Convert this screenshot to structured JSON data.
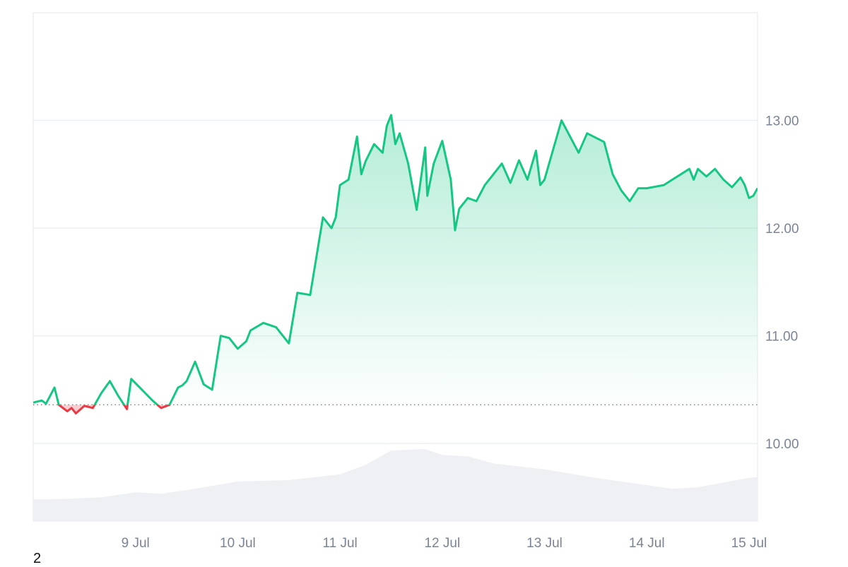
{
  "colors": {
    "up_line": "#16c784",
    "down_line": "#ea3943",
    "up_fill_top": "#16c784",
    "volume": "#eef0f3",
    "grid": "#eceff3",
    "tick_text": "#7b8494",
    "baseline": "#888888"
  },
  "footer_note": "2",
  "chart_data": {
    "type": "area",
    "title": "",
    "xlabel": "",
    "ylabel": "",
    "x_tick_labels": [
      "9 Jul",
      "10 Jul",
      "11 Jul",
      "12 Jul",
      "13 Jul",
      "14 Jul",
      "15 Jul"
    ],
    "y_tick_labels": [
      "13.00",
      "12.00",
      "11.00",
      "10.00"
    ],
    "y_ticks": [
      13.0,
      12.0,
      11.0,
      10.0
    ],
    "ylim": [
      9.28,
      14.0
    ],
    "xlim": [
      "2024-07-08T00:00",
      "2024-07-15T02:00"
    ],
    "baseline": 10.36,
    "grid": true,
    "y_axis_position": "right",
    "price_series": {
      "name": "",
      "x": [
        "2024-07-08T00:00",
        "2024-07-08T02:00",
        "2024-07-08T03:00",
        "2024-07-08T05:00",
        "2024-07-08T06:00",
        "2024-07-08T08:00",
        "2024-07-08T09:00",
        "2024-07-08T10:00",
        "2024-07-08T12:00",
        "2024-07-08T14:00",
        "2024-07-08T16:00",
        "2024-07-08T18:00",
        "2024-07-08T20:00",
        "2024-07-08T22:00",
        "2024-07-08T23:00",
        "2024-07-09T02:00",
        "2024-07-09T04:00",
        "2024-07-09T06:00",
        "2024-07-09T08:00",
        "2024-07-09T10:00",
        "2024-07-09T11:00",
        "2024-07-09T12:00",
        "2024-07-09T14:00",
        "2024-07-09T16:00",
        "2024-07-09T18:00",
        "2024-07-09T20:00",
        "2024-07-09T22:00",
        "2024-07-10T00:00",
        "2024-07-10T02:00",
        "2024-07-10T03:00",
        "2024-07-10T06:00",
        "2024-07-10T09:00",
        "2024-07-10T12:00",
        "2024-07-10T14:00",
        "2024-07-10T17:00",
        "2024-07-10T20:00",
        "2024-07-10T22:00",
        "2024-07-10T23:00",
        "2024-07-11T00:00",
        "2024-07-11T02:00",
        "2024-07-11T04:00",
        "2024-07-11T05:00",
        "2024-07-11T06:00",
        "2024-07-11T08:00",
        "2024-07-11T10:00",
        "2024-07-11T11:00",
        "2024-07-11T12:00",
        "2024-07-11T13:00",
        "2024-07-11T14:00",
        "2024-07-11T16:00",
        "2024-07-11T18:00",
        "2024-07-11T20:00",
        "2024-07-11T20:30",
        "2024-07-11T22:00",
        "2024-07-12T00:00",
        "2024-07-12T02:00",
        "2024-07-12T03:00",
        "2024-07-12T04:00",
        "2024-07-12T06:00",
        "2024-07-12T08:00",
        "2024-07-12T10:00",
        "2024-07-12T12:00",
        "2024-07-12T14:00",
        "2024-07-12T16:00",
        "2024-07-12T18:00",
        "2024-07-12T20:00",
        "2024-07-12T22:00",
        "2024-07-12T23:00",
        "2024-07-13T00:00",
        "2024-07-13T04:00",
        "2024-07-13T08:00",
        "2024-07-13T10:00",
        "2024-07-13T14:00",
        "2024-07-13T16:00",
        "2024-07-13T18:00",
        "2024-07-13T20:00",
        "2024-07-13T22:00",
        "2024-07-14T00:00",
        "2024-07-14T04:00",
        "2024-07-14T06:00",
        "2024-07-14T08:00",
        "2024-07-14T10:00",
        "2024-07-14T11:00",
        "2024-07-14T12:00",
        "2024-07-14T14:00",
        "2024-07-14T16:00",
        "2024-07-14T18:00",
        "2024-07-14T20:00",
        "2024-07-14T22:00",
        "2024-07-14T23:00",
        "2024-07-15T00:00",
        "2024-07-15T01:00",
        "2024-07-15T02:00"
      ],
      "y": [
        10.38,
        10.4,
        10.37,
        10.52,
        10.36,
        10.3,
        10.33,
        10.28,
        10.35,
        10.33,
        10.47,
        10.58,
        10.44,
        10.32,
        10.6,
        10.48,
        10.4,
        10.33,
        10.36,
        10.52,
        10.54,
        10.58,
        10.76,
        10.55,
        10.5,
        11.0,
        10.98,
        10.88,
        10.95,
        11.05,
        11.12,
        11.08,
        10.93,
        11.4,
        11.38,
        12.1,
        12.0,
        12.1,
        12.4,
        12.45,
        12.85,
        12.5,
        12.62,
        12.78,
        12.7,
        12.95,
        13.05,
        12.78,
        12.88,
        12.6,
        12.17,
        12.75,
        12.3,
        12.6,
        12.81,
        12.45,
        11.98,
        12.18,
        12.28,
        12.25,
        12.4,
        12.5,
        12.6,
        12.42,
        12.63,
        12.45,
        12.72,
        12.4,
        12.45,
        13.0,
        12.7,
        12.88,
        12.8,
        12.5,
        12.35,
        12.25,
        12.37,
        12.37,
        12.4,
        12.45,
        12.5,
        12.55,
        12.45,
        12.55,
        12.48,
        12.55,
        12.45,
        12.38,
        12.47,
        12.4,
        12.28,
        12.3,
        12.37
      ]
    },
    "volume_series": {
      "name": "",
      "x": [
        "2024-07-08T00:00",
        "2024-07-08T08:00",
        "2024-07-08T16:00",
        "2024-07-09T00:00",
        "2024-07-09T06:00",
        "2024-07-09T12:00",
        "2024-07-10T00:00",
        "2024-07-10T12:00",
        "2024-07-11T00:00",
        "2024-07-11T06:00",
        "2024-07-11T12:00",
        "2024-07-11T20:00",
        "2024-07-12T00:00",
        "2024-07-12T06:00",
        "2024-07-12T12:00",
        "2024-07-13T00:00",
        "2024-07-13T12:00",
        "2024-07-14T00:00",
        "2024-07-14T06:00",
        "2024-07-14T12:00",
        "2024-07-15T00:00",
        "2024-07-15T02:00"
      ],
      "y": [
        0.3,
        0.31,
        0.33,
        0.4,
        0.38,
        0.43,
        0.55,
        0.57,
        0.65,
        0.78,
        0.98,
        1.0,
        0.92,
        0.9,
        0.8,
        0.72,
        0.6,
        0.5,
        0.45,
        0.47,
        0.6,
        0.61
      ]
    }
  }
}
